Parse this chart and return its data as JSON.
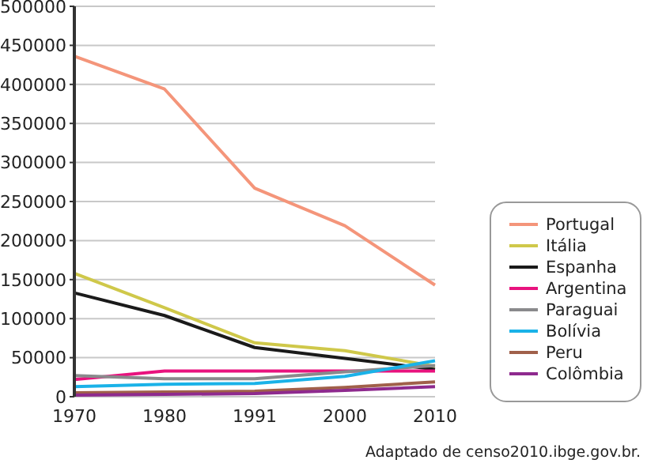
{
  "chart_data": {
    "type": "line",
    "categories": [
      "1970",
      "1980",
      "1991",
      "2000",
      "2010"
    ],
    "series": [
      {
        "name": "Portugal",
        "color": "#f4957a",
        "values": [
          436000,
          394000,
          267000,
          219000,
          143000
        ]
      },
      {
        "name": "Itália",
        "color": "#cfc84a",
        "values": [
          158000,
          114000,
          69000,
          59000,
          39000
        ]
      },
      {
        "name": "Espanha",
        "color": "#1a1a1a",
        "values": [
          133000,
          104000,
          63000,
          49000,
          35000
        ]
      },
      {
        "name": "Argentina",
        "color": "#e8137e",
        "values": [
          22000,
          33000,
          33000,
          33000,
          33000
        ]
      },
      {
        "name": "Paraguai",
        "color": "#8a8a8c",
        "values": [
          27000,
          23000,
          23000,
          32000,
          40000
        ]
      },
      {
        "name": "Bolívia",
        "color": "#1ab2e8",
        "values": [
          13000,
          16000,
          17000,
          26000,
          46000
        ]
      },
      {
        "name": "Peru",
        "color": "#a0604a",
        "values": [
          5000,
          6000,
          7000,
          12000,
          19000
        ]
      },
      {
        "name": "Colômbia",
        "color": "#8e2a8e",
        "values": [
          2000,
          3000,
          4000,
          8000,
          13000
        ]
      }
    ],
    "ylim": [
      0,
      500000
    ],
    "yticks": [
      0,
      50000,
      100000,
      150000,
      200000,
      250000,
      300000,
      350000,
      400000,
      450000,
      500000
    ],
    "grid": "y",
    "legend": "right",
    "marker": "none",
    "line_style": "solid",
    "annotations": [
      "Adaptado de censo2010.ibge.gov.br."
    ]
  }
}
